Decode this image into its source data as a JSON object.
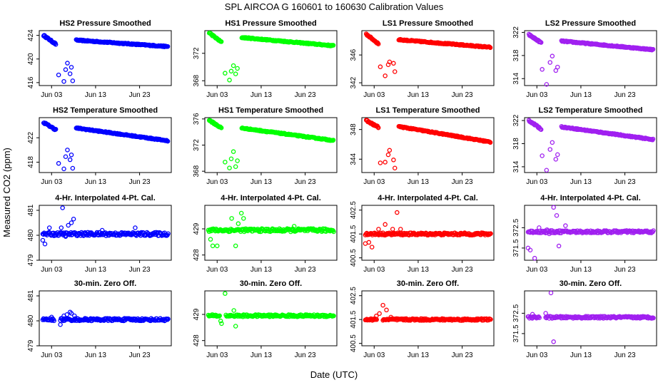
{
  "title": "SPL   AIRCOA G   160601 to 160630   Calibration Values",
  "xlabel": "Date (UTC)",
  "ylabel": "Measured CO2 (ppm)",
  "x_ticks": [
    {
      "day": 3,
      "label": "Jun 03"
    },
    {
      "day": 13,
      "label": "Jun 13"
    },
    {
      "day": 23,
      "label": "Jun 23"
    }
  ],
  "x_range": [
    0.2,
    30.2
  ],
  "series_colors": {
    "HS2": "#0000ff",
    "HS1": "#00ff00",
    "LS1": "#ff0000",
    "LS2": "#a020f0"
  },
  "chart_data": [
    {
      "type": "scatter",
      "title": "HS2 Pressure Smoothed",
      "series": "HS2",
      "kind": "smooth",
      "ylim": [
        415.5,
        424.8
      ],
      "yticks": [
        416,
        420,
        424
      ],
      "base": 424,
      "end": 422.1,
      "start_day": 1.2,
      "dip_start": 422.5,
      "gap": [
        {
          "x": 4.6,
          "y": 417.3
        },
        {
          "x": 5.8,
          "y": 416.2
        },
        {
          "x": 6.2,
          "y": 418.2
        },
        {
          "x": 6.6,
          "y": 419.3
        },
        {
          "x": 7.2,
          "y": 417.5
        },
        {
          "x": 7.5,
          "y": 418.6
        },
        {
          "x": 7.8,
          "y": 416.3
        }
      ],
      "recover": 423.2,
      "recover_day": 8.6
    },
    {
      "type": "scatter",
      "title": "HS1 Pressure Smoothed",
      "series": "HS1",
      "kind": "smooth",
      "ylim": [
        367.3,
        375.3
      ],
      "yticks": [
        368,
        372
      ],
      "base": 375,
      "end": 373.1,
      "start_day": 1.2,
      "dip_start": 373.6,
      "gap": [
        {
          "x": 4.8,
          "y": 369.1
        },
        {
          "x": 5.8,
          "y": 368.1
        },
        {
          "x": 6.2,
          "y": 369.4
        },
        {
          "x": 6.7,
          "y": 370.2
        },
        {
          "x": 7.2,
          "y": 369.0
        },
        {
          "x": 7.6,
          "y": 369.8
        }
      ],
      "recover": 374.3,
      "recover_day": 8.6
    },
    {
      "type": "scatter",
      "title": "LS1 Pressure Smoothed",
      "series": "LS1",
      "kind": "smooth",
      "ylim": [
        341.6,
        349.5
      ],
      "yticks": [
        342,
        346
      ],
      "base": 349,
      "end": 347.1,
      "start_day": 1.2,
      "dip_start": 347.6,
      "gap": [
        {
          "x": 4.4,
          "y": 344.3
        },
        {
          "x": 5.5,
          "y": 343.0
        },
        {
          "x": 6.2,
          "y": 344.6
        },
        {
          "x": 6.5,
          "y": 345.0
        },
        {
          "x": 7.4,
          "y": 344.8
        },
        {
          "x": 7.7,
          "y": 343.6
        }
      ],
      "recover": 348.2,
      "recover_day": 8.6
    },
    {
      "type": "scatter",
      "title": "LS2 Pressure Smoothed",
      "series": "LS2",
      "kind": "smooth",
      "ylim": [
        312.8,
        322.3
      ],
      "yticks": [
        314,
        318,
        322
      ],
      "base": 321.6,
      "end": 319.0,
      "start_day": 1.2,
      "dip_start": 320.2,
      "gap": [
        {
          "x": 4.2,
          "y": 315.6
        },
        {
          "x": 5.2,
          "y": 313.0
        },
        {
          "x": 6.0,
          "y": 316.8
        },
        {
          "x": 6.5,
          "y": 317.9
        },
        {
          "x": 7.3,
          "y": 315.4
        },
        {
          "x": 7.7,
          "y": 316.0
        }
      ],
      "recover": 320.5,
      "recover_day": 8.6
    },
    {
      "type": "scatter",
      "title": "HS2 Temperature Smoothed",
      "series": "HS2",
      "kind": "smooth",
      "ylim": [
        416.3,
        425.3
      ],
      "yticks": [
        418,
        422
      ],
      "base": 424.5,
      "end": 421.5,
      "start_day": 1.2,
      "dip_start": 423.3,
      "gap": [
        {
          "x": 4.6,
          "y": 417.8
        },
        {
          "x": 5.8,
          "y": 416.9
        },
        {
          "x": 6.2,
          "y": 418.9
        },
        {
          "x": 6.6,
          "y": 420.0
        },
        {
          "x": 7.2,
          "y": 418.4
        },
        {
          "x": 7.5,
          "y": 419.2
        },
        {
          "x": 7.8,
          "y": 417.0
        }
      ],
      "recover": 423.6,
      "recover_day": 8.6
    },
    {
      "type": "scatter",
      "title": "HS1 Temperature Smoothed",
      "series": "HS1",
      "kind": "smooth",
      "ylim": [
        367.8,
        376.2
      ],
      "yticks": [
        368,
        372,
        376
      ],
      "base": 375.8,
      "end": 372.7,
      "start_day": 1.2,
      "dip_start": 374.6,
      "gap": [
        {
          "x": 4.8,
          "y": 369.4
        },
        {
          "x": 5.8,
          "y": 368.5
        },
        {
          "x": 6.2,
          "y": 369.9
        },
        {
          "x": 6.7,
          "y": 371.0
        },
        {
          "x": 7.2,
          "y": 368.7
        },
        {
          "x": 7.6,
          "y": 369.6
        }
      ],
      "recover": 374.6,
      "recover_day": 8.6
    },
    {
      "type": "scatter",
      "title": "LS1 Temperature Smoothed",
      "series": "LS1",
      "kind": "smooth",
      "ylim": [
        342.2,
        349.6
      ],
      "yticks": [
        344,
        348
      ],
      "base": 349.2,
      "end": 346.3,
      "start_day": 1.2,
      "dip_start": 348.3,
      "gap": [
        {
          "x": 4.4,
          "y": 343.5
        },
        {
          "x": 5.5,
          "y": 343.6
        },
        {
          "x": 6.2,
          "y": 344.6
        },
        {
          "x": 6.5,
          "y": 345.2
        },
        {
          "x": 7.4,
          "y": 343.9
        },
        {
          "x": 7.7,
          "y": 342.8
        }
      ],
      "recover": 348.4,
      "recover_day": 8.6
    },
    {
      "type": "scatter",
      "title": "LS2 Temperature Smoothed",
      "series": "LS2",
      "kind": "smooth",
      "ylim": [
        313.0,
        322.5
      ],
      "yticks": [
        314,
        318,
        322
      ],
      "base": 322.0,
      "end": 318.7,
      "start_day": 1.2,
      "dip_start": 320.5,
      "gap": [
        {
          "x": 4.2,
          "y": 315.9
        },
        {
          "x": 5.2,
          "y": 313.4
        },
        {
          "x": 6.0,
          "y": 317.0
        },
        {
          "x": 6.5,
          "y": 318.2
        },
        {
          "x": 7.3,
          "y": 315.3
        },
        {
          "x": 7.7,
          "y": 316.1
        }
      ],
      "recover": 320.9,
      "recover_day": 8.6
    },
    {
      "type": "scatter",
      "title": "4-Hr. Interpolated 4-Pt. Cal.",
      "series": "HS2",
      "kind": "flat",
      "ylim": [
        479.0,
        481.2
      ],
      "yticks": [
        479.0,
        480.0,
        481.0
      ],
      "center": 480.05,
      "spread": 0.07,
      "outliers": [
        {
          "x": 1.0,
          "y": 479.8
        },
        {
          "x": 1.5,
          "y": 479.65
        },
        {
          "x": 2.5,
          "y": 480.3
        },
        {
          "x": 5.2,
          "y": 480.3
        },
        {
          "x": 5.5,
          "y": 481.1
        },
        {
          "x": 6.2,
          "y": 479.95
        },
        {
          "x": 6.8,
          "y": 480.4
        },
        {
          "x": 7.5,
          "y": 480.5
        },
        {
          "x": 8.0,
          "y": 480.65
        },
        {
          "x": 14.5,
          "y": 480.2
        },
        {
          "x": 22.0,
          "y": 480.3
        }
      ]
    },
    {
      "type": "scatter",
      "title": "4-Hr. Interpolated 4-Pt. Cal.",
      "series": "HS1",
      "kind": "flat",
      "ylim": [
        427.8,
        429.9
      ],
      "yticks": [
        428.0,
        429.0
      ],
      "center": 428.95,
      "spread": 0.06,
      "outliers": [
        {
          "x": 1.5,
          "y": 428.6
        },
        {
          "x": 2.0,
          "y": 428.35
        },
        {
          "x": 3.0,
          "y": 428.35
        },
        {
          "x": 5.8,
          "y": 428.9
        },
        {
          "x": 6.3,
          "y": 429.4
        },
        {
          "x": 7.2,
          "y": 428.35
        },
        {
          "x": 7.8,
          "y": 429.2
        },
        {
          "x": 8.5,
          "y": 429.6
        },
        {
          "x": 9.0,
          "y": 429.4
        },
        {
          "x": 20.5,
          "y": 429.1
        }
      ]
    },
    {
      "type": "scatter",
      "title": "4-Hr. Interpolated 4-Pt. Cal.",
      "series": "LS1",
      "kind": "flat",
      "ylim": [
        400.4,
        402.7
      ],
      "yticks": [
        400.5,
        401.5,
        402.5
      ],
      "center": 401.5,
      "spread": 0.05,
      "outliers": [
        {
          "x": 1.0,
          "y": 401.1
        },
        {
          "x": 1.8,
          "y": 401.15
        },
        {
          "x": 2.5,
          "y": 400.95
        },
        {
          "x": 4.0,
          "y": 401.7
        },
        {
          "x": 5.5,
          "y": 401.9
        },
        {
          "x": 7.2,
          "y": 401.7
        },
        {
          "x": 8.2,
          "y": 402.4
        },
        {
          "x": 9.0,
          "y": 401.7
        }
      ]
    },
    {
      "type": "scatter",
      "title": "4-Hr. Interpolated 4-Pt. Cal.",
      "series": "LS2",
      "kind": "flat",
      "ylim": [
        370.9,
        373.6
      ],
      "yticks": [
        371.5,
        372.5
      ],
      "center": 372.3,
      "spread": 0.06,
      "outliers": [
        {
          "x": 1.0,
          "y": 371.5
        },
        {
          "x": 1.5,
          "y": 371.4
        },
        {
          "x": 2.5,
          "y": 371.0
        },
        {
          "x": 3.5,
          "y": 372.5
        },
        {
          "x": 5.3,
          "y": 372.4
        },
        {
          "x": 5.8,
          "y": 372.2
        },
        {
          "x": 6.8,
          "y": 373.5
        },
        {
          "x": 7.5,
          "y": 373.1
        },
        {
          "x": 8.0,
          "y": 371.6
        },
        {
          "x": 9.5,
          "y": 372.6
        }
      ]
    },
    {
      "type": "scatter",
      "title": "30-min. Zero Off.",
      "series": "HS2",
      "kind": "flat",
      "ylim": [
        479.0,
        481.2
      ],
      "yticks": [
        479.0,
        480.0,
        481.0
      ],
      "center": 480.05,
      "spread": 0.05,
      "outliers": [
        {
          "x": 3.0,
          "y": 480.15
        },
        {
          "x": 5.0,
          "y": 479.85
        },
        {
          "x": 5.8,
          "y": 480.2
        },
        {
          "x": 6.5,
          "y": 480.25
        },
        {
          "x": 7.2,
          "y": 480.35
        },
        {
          "x": 7.5,
          "y": 480.3
        },
        {
          "x": 8.2,
          "y": 480.2
        }
      ]
    },
    {
      "type": "scatter",
      "title": "30-min. Zero Off.",
      "series": "HS1",
      "kind": "flat",
      "ylim": [
        427.8,
        429.9
      ],
      "yticks": [
        428.0,
        429.0
      ],
      "center": 428.95,
      "spread": 0.04,
      "outliers": [
        {
          "x": 3.8,
          "y": 428.75
        },
        {
          "x": 4.0,
          "y": 428.65
        },
        {
          "x": 4.8,
          "y": 429.8
        },
        {
          "x": 6.8,
          "y": 429.15
        },
        {
          "x": 7.2,
          "y": 428.55
        }
      ]
    },
    {
      "type": "scatter",
      "title": "30-min. Zero Off.",
      "series": "LS1",
      "kind": "flat",
      "ylim": [
        400.4,
        402.7
      ],
      "yticks": [
        400.5,
        401.5,
        402.5
      ],
      "center": 401.5,
      "spread": 0.04,
      "outliers": [
        {
          "x": 3.5,
          "y": 401.65
        },
        {
          "x": 4.2,
          "y": 401.75
        },
        {
          "x": 5.0,
          "y": 402.1
        },
        {
          "x": 5.8,
          "y": 401.9
        },
        {
          "x": 6.8,
          "y": 401.6
        }
      ]
    },
    {
      "type": "scatter",
      "title": "30-min. Zero Off.",
      "series": "LS2",
      "kind": "flat",
      "ylim": [
        370.9,
        373.6
      ],
      "yticks": [
        371.5,
        372.5
      ],
      "center": 372.3,
      "spread": 0.05,
      "outliers": [
        {
          "x": 2.0,
          "y": 372.45
        },
        {
          "x": 5.0,
          "y": 372.5
        },
        {
          "x": 6.2,
          "y": 373.5
        },
        {
          "x": 6.8,
          "y": 371.1
        }
      ]
    }
  ]
}
